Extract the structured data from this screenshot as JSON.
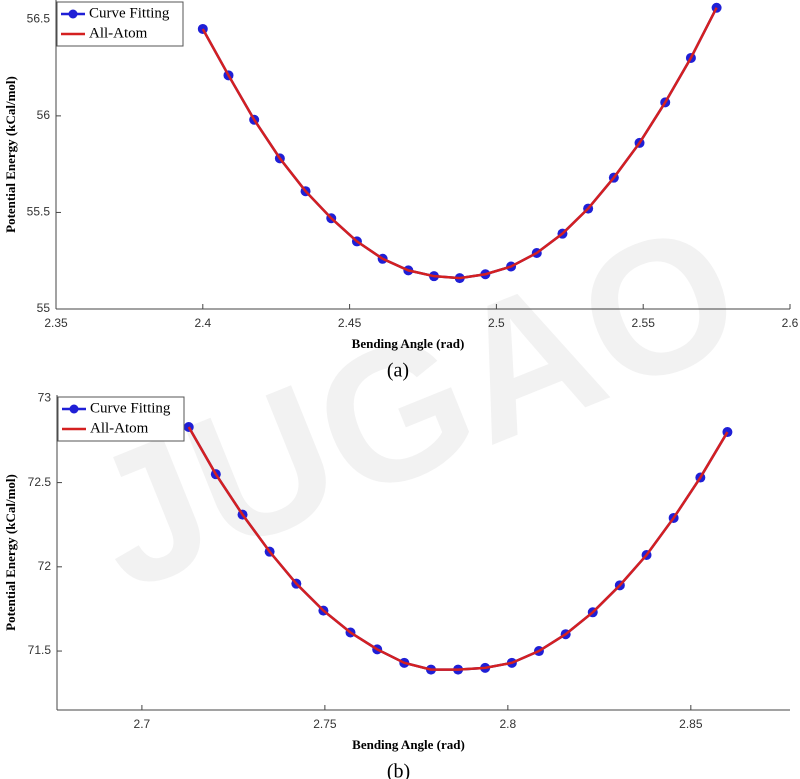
{
  "chart_data": [
    {
      "type": "line",
      "caption": "(a)",
      "xlabel": "Bending Angle (rad)",
      "ylabel": "Potential Energy (kCal/mol)",
      "x": [
        2.4,
        2.40875,
        2.4175,
        2.42625,
        2.435,
        2.44375,
        2.4525,
        2.46125,
        2.47,
        2.47875,
        2.4875,
        2.49625,
        2.505,
        2.51375,
        2.5225,
        2.53125,
        2.54,
        2.54875,
        2.5575,
        2.56625,
        2.575
      ],
      "series": [
        {
          "name": "Curve Fitting",
          "color": "#1f1fd6",
          "marker": true,
          "values": [
            56.45,
            56.21,
            55.98,
            55.78,
            55.61,
            55.47,
            55.35,
            55.26,
            55.2,
            55.17,
            55.16,
            55.18,
            55.22,
            55.29,
            55.39,
            55.52,
            55.68,
            55.86,
            56.07,
            56.3,
            56.56
          ]
        },
        {
          "name": "All-Atom",
          "color": "#d42020",
          "marker": false,
          "values": [
            56.45,
            56.21,
            55.98,
            55.78,
            55.61,
            55.47,
            55.35,
            55.26,
            55.2,
            55.17,
            55.16,
            55.18,
            55.22,
            55.29,
            55.39,
            55.52,
            55.68,
            55.86,
            56.07,
            56.3,
            56.56
          ]
        }
      ],
      "xlim": [
        2.35,
        2.6
      ],
      "ylim": [
        55,
        56.6
      ],
      "xticks": [
        2.35,
        2.4,
        2.45,
        2.5,
        2.55,
        2.6
      ],
      "yticks": [
        55,
        55.5,
        56,
        56.5
      ],
      "legend": "upper left"
    },
    {
      "type": "line",
      "caption": "(b)",
      "xlabel": "Bending Angle (rad)",
      "ylabel": "Potential Energy (kCal/mol)",
      "x": [
        2.7128,
        2.7202,
        2.7275,
        2.7349,
        2.7422,
        2.7496,
        2.757,
        2.7643,
        2.7717,
        2.779,
        2.7864,
        2.7938,
        2.8011,
        2.8085,
        2.8158,
        2.8232,
        2.8306,
        2.8379,
        2.8453,
        2.8526,
        2.86
      ],
      "series": [
        {
          "name": "Curve Fitting",
          "color": "#1f1fd6",
          "marker": true,
          "values": [
            72.83,
            72.55,
            72.31,
            72.09,
            71.9,
            71.74,
            71.61,
            71.51,
            71.43,
            71.39,
            71.39,
            71.4,
            71.43,
            71.5,
            71.6,
            71.73,
            71.89,
            72.07,
            72.29,
            72.53,
            72.8
          ]
        },
        {
          "name": "All-Atom",
          "color": "#d42020",
          "marker": false,
          "values": [
            72.83,
            72.55,
            72.31,
            72.09,
            71.9,
            71.74,
            71.61,
            71.51,
            71.43,
            71.39,
            71.39,
            71.4,
            71.43,
            71.5,
            71.6,
            71.73,
            71.89,
            72.07,
            72.29,
            72.53,
            72.8
          ]
        }
      ],
      "xlim": [
        2.6768,
        2.8771
      ],
      "ylim": [
        71.15,
        73.02
      ],
      "xticks": [
        2.7,
        2.75,
        2.8,
        2.85
      ],
      "yticks": [
        71.5,
        72,
        72.5,
        73
      ],
      "legend": "upper left"
    }
  ],
  "watermark": "JUGAO"
}
